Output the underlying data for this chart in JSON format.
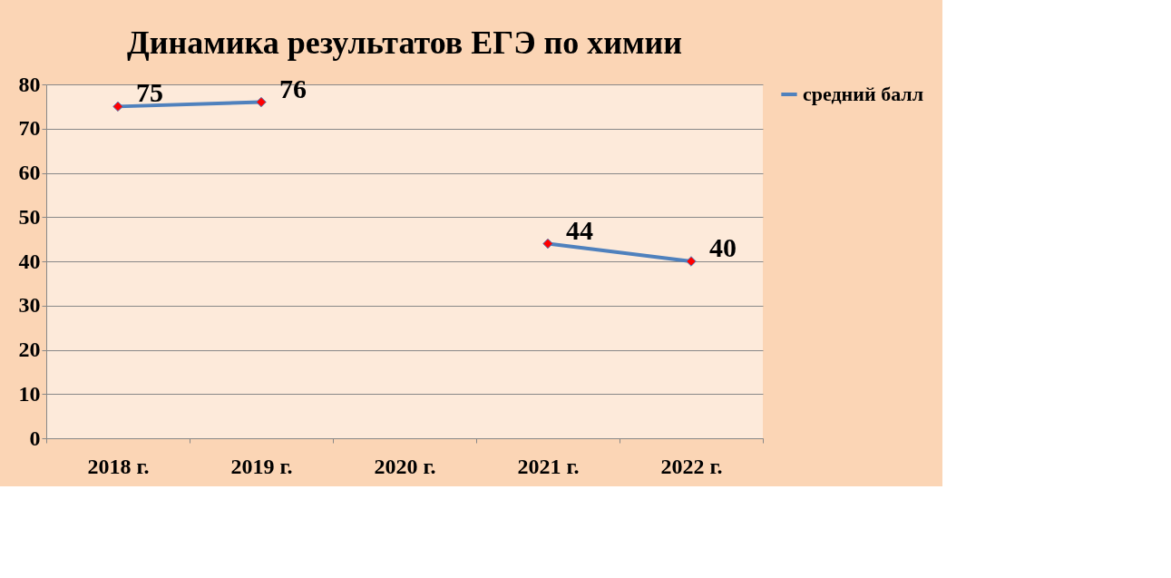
{
  "chart_data": {
    "type": "line",
    "title": "Динамика результатов ЕГЭ по химии",
    "categories": [
      "2018 г.",
      "2019 г.",
      "2020 г.",
      "2021 г.",
      "2022 г."
    ],
    "series": [
      {
        "name": "средний балл",
        "color": "#4f81bd",
        "values": [
          75,
          76,
          null,
          44,
          40
        ]
      }
    ],
    "ylim": [
      0,
      80
    ],
    "yticks": [
      0,
      10,
      20,
      30,
      40,
      50,
      60,
      70,
      80
    ],
    "grid": "y",
    "legend": "right",
    "marker": "diamond",
    "line_style": "solid",
    "data_labels": true
  }
}
